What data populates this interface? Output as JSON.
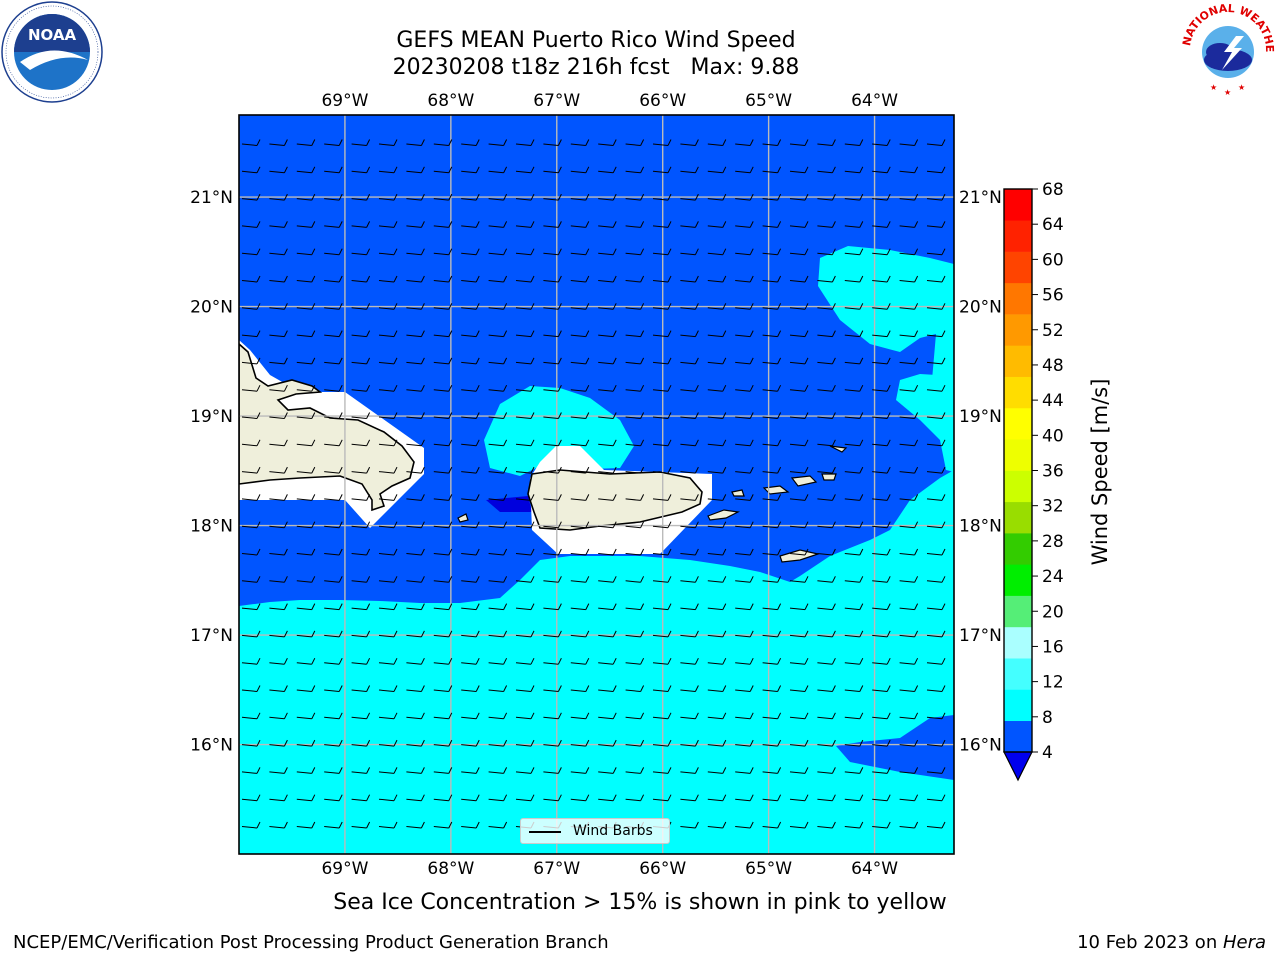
{
  "title": {
    "line1": "GEFS MEAN Puerto Rico Wind Speed",
    "line2": "20230208 t18z 216h fcst   Max: 9.88"
  },
  "logos": {
    "left": {
      "name": "noaa-logo",
      "text": "NOAA",
      "ring_text": "NATIONAL OCEANIC AND ATMOSPHERIC ADMINISTRATION · U.S. DEPARTMENT OF COMMERCE"
    },
    "right": {
      "name": "nws-logo",
      "ring_text": "NATIONAL WEATHER SERVICE"
    }
  },
  "map": {
    "lon_labels": [
      "69°W",
      "68°W",
      "67°W",
      "66°W",
      "65°W",
      "64°W"
    ],
    "lat_labels": [
      "21°N",
      "20°N",
      "19°N",
      "18°N",
      "17°N",
      "16°N"
    ],
    "lon_range": [
      -70.0,
      -63.25
    ],
    "lat_range": [
      15.0,
      21.75
    ],
    "gridlines": true,
    "fill_colors": {
      "4-8": "#0055ff",
      "8-12": "#00ffff",
      "below-4": "#0000dd",
      "land": "#efefdb",
      "grid": "#bbbbbb"
    },
    "dominant_wind": "easterly"
  },
  "legend": {
    "label": "Wind Barbs",
    "placement": "lower-center"
  },
  "colorbar": {
    "label": "Wind Speed [m/s]",
    "ticks": [
      "4",
      "8",
      "12",
      "16",
      "20",
      "24",
      "28",
      "32",
      "36",
      "40",
      "44",
      "48",
      "52",
      "56",
      "60",
      "64",
      "68"
    ],
    "colors": [
      "#0055ff",
      "#00ffff",
      "#44ffff",
      "#aaffff",
      "#55ee77",
      "#00ee00",
      "#33cc00",
      "#99dd00",
      "#ccff00",
      "#eeff00",
      "#ffff00",
      "#ffdd00",
      "#ffbb00",
      "#ff9900",
      "#ff7700",
      "#ff4400",
      "#ff2200",
      "#ff0000"
    ],
    "under_color": "#0000ee"
  },
  "note": "Sea Ice Concentration > 15% is shown in pink to yellow",
  "footer": {
    "left": "NCEP/EMC/Verification Post Processing Product Generation Branch",
    "right_prefix": "10 Feb 2023 on ",
    "right_host": "Hera"
  }
}
